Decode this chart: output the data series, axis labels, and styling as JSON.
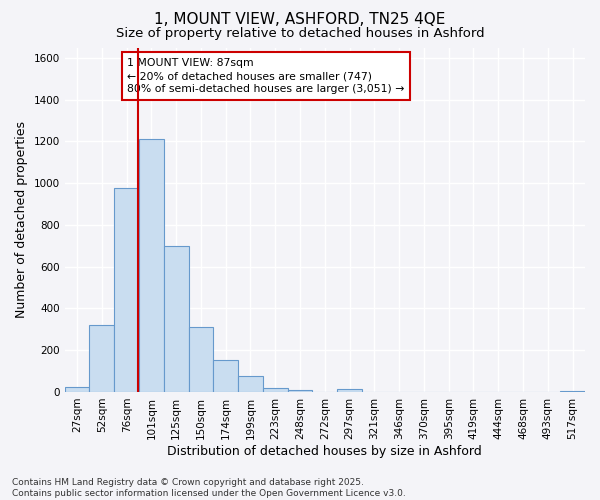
{
  "title": "1, MOUNT VIEW, ASHFORD, TN25 4QE",
  "subtitle": "Size of property relative to detached houses in Ashford",
  "xlabel": "Distribution of detached houses by size in Ashford",
  "ylabel": "Number of detached properties",
  "bins": [
    "27sqm",
    "52sqm",
    "76sqm",
    "101sqm",
    "125sqm",
    "150sqm",
    "174sqm",
    "199sqm",
    "223sqm",
    "248sqm",
    "272sqm",
    "297sqm",
    "321sqm",
    "346sqm",
    "370sqm",
    "395sqm",
    "419sqm",
    "444sqm",
    "468sqm",
    "493sqm",
    "517sqm"
  ],
  "bar_heights": [
    25,
    320,
    975,
    1210,
    700,
    310,
    155,
    75,
    20,
    10,
    0,
    12,
    0,
    0,
    0,
    0,
    0,
    0,
    0,
    0,
    5
  ],
  "bar_color": "#c9ddf0",
  "bar_edge_color": "#6699cc",
  "vline_color": "#cc0000",
  "ylim": [
    0,
    1650
  ],
  "yticks": [
    0,
    200,
    400,
    600,
    800,
    1000,
    1200,
    1400,
    1600
  ],
  "annotation_line1": "1 MOUNT VIEW: 87sqm",
  "annotation_line2": "← 20% of detached houses are smaller (747)",
  "annotation_line3": "80% of semi-detached houses are larger (3,051) →",
  "annotation_box_color": "#ffffff",
  "annotation_box_edge": "#cc0000",
  "footer_text": "Contains HM Land Registry data © Crown copyright and database right 2025.\nContains public sector information licensed under the Open Government Licence v3.0.",
  "bg_color": "#f4f4f8",
  "plot_bg_color": "#f4f4f8",
  "grid_color": "#ffffff",
  "title_fontsize": 11,
  "subtitle_fontsize": 9.5,
  "axis_label_fontsize": 9,
  "tick_fontsize": 7.5,
  "footer_fontsize": 6.5
}
